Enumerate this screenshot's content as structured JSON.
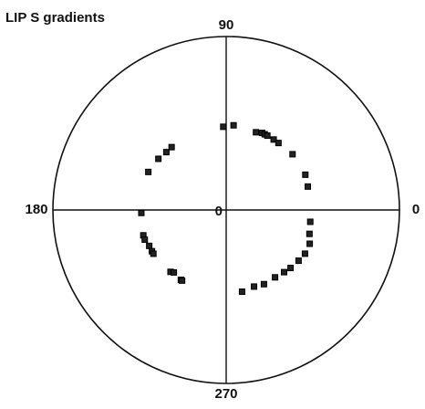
{
  "chart_data": {
    "type": "polar",
    "title": "LIP S gradients",
    "rlim": [
      0,
      1
    ],
    "rticks": [
      0
    ],
    "thetaticks": [
      0,
      90,
      180,
      270
    ],
    "color": "#222222",
    "theta": [
      92,
      85,
      69,
      65,
      63,
      61,
      56,
      52,
      40,
      24,
      16,
      352,
      344,
      338,
      331,
      325,
      318,
      313,
      306,
      297,
      290,
      281,
      182,
      197,
      200,
      205,
      209,
      211,
      228,
      230,
      237,
      238,
      154,
      143,
      136,
      131
    ],
    "r": [
      0.48,
      0.49,
      0.48,
      0.49,
      0.49,
      0.49,
      0.49,
      0.49,
      0.5,
      0.5,
      0.49,
      0.49,
      0.5,
      0.52,
      0.52,
      0.51,
      0.5,
      0.49,
      0.48,
      0.48,
      0.47,
      0.48,
      0.49,
      0.5,
      0.5,
      0.49,
      0.49,
      0.49,
      0.48,
      0.47,
      0.48,
      0.48,
      0.5,
      0.49,
      0.48,
      0.48
    ]
  }
}
